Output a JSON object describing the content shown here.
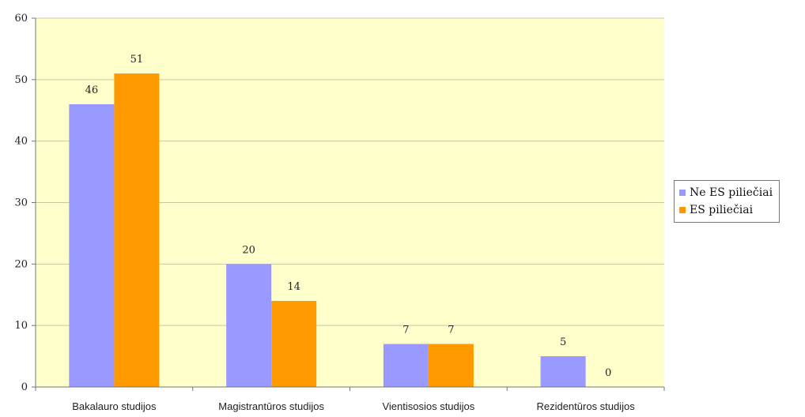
{
  "chart_data": {
    "type": "bar",
    "categories": [
      "Bakalauro studijos",
      "Magistrantūros studijos",
      "Vientisosios studijos",
      "Rezidentūros studijos"
    ],
    "series": [
      {
        "name": "Ne ES piliečiai",
        "values": [
          46,
          20,
          7,
          5
        ],
        "color": "#9999ff"
      },
      {
        "name": "ES piliečiai",
        "values": [
          51,
          14,
          7,
          0
        ],
        "color": "#ff9900"
      }
    ],
    "yticks": [
      0,
      10,
      20,
      30,
      40,
      50,
      60
    ],
    "ylim": [
      0,
      60
    ],
    "grid": true,
    "legend_position": "right",
    "plot_background": "#ffffcc",
    "gridline_color": "#c8c8a0"
  }
}
